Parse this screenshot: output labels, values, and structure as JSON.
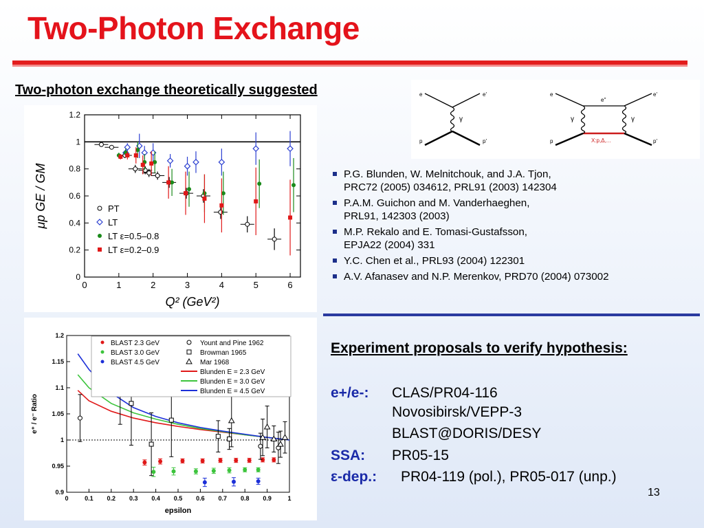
{
  "title": "Two-Photon Exchange",
  "subtitle": "Two-photon exchange theoretically suggested",
  "references": [
    {
      "line1": "P.G. Blunden, W. Melnitchouk, and J.A. Tjon,",
      "line2": "PRC72 (2005) 034612, PRL91 (2003) 142304"
    },
    {
      "line1": "P.A.M. Guichon and M. Vanderhaeghen,",
      "line2": "PRL91, 142303 (2003)"
    },
    {
      "line1": "M.P. Rekalo and E. Tomasi-Gustafsson,",
      "line2": "EPJA22 (2004) 331"
    },
    {
      "line1": "Y.C. Chen et al., PRL93 (2004) 122301",
      "line2": ""
    },
    {
      "line1": "A.V. Afanasev and N.P. Merenkov, PRD70 (2004) 073002",
      "line2": ""
    }
  ],
  "experiments": {
    "heading": "Experiment proposals to verify hypothesis:",
    "epem_label": "e+/e-:",
    "epem_items": [
      "CLAS/PR04-116",
      "Novosibirsk/VEPP-3",
      "BLAST@DORIS/DESY"
    ],
    "ssa_label": "SSA:",
    "ssa_value": "PR05-15",
    "eps_label": "ε-dep.:",
    "eps_value": "PR04-119 (pol.), PR05-017 (unp.)"
  },
  "page_number": "13",
  "feynman": {
    "left": {
      "e_in": "e",
      "e_out": "e'",
      "p_in": "p",
      "p_out": "p'",
      "boson": "γ"
    },
    "right": {
      "e_in": "e",
      "e_mid": "e''",
      "e_out": "e'",
      "p_in": "p",
      "p_out": "p'",
      "boson1": "γ",
      "boson2": "γ",
      "intermediate": "X:p,Δ,..."
    }
  },
  "colors": {
    "title": "#e4131b",
    "accent": "#1a2aa8",
    "rule_red": "#e31d1d",
    "rule_blue": "#2a3aa0"
  },
  "chart_data": [
    {
      "type": "scatter",
      "title": "",
      "xlabel": "Q² (GeV²)",
      "ylabel": "μp GE / GM",
      "xlim": [
        0,
        6.3
      ],
      "ylim": [
        0,
        1.2
      ],
      "xticks": [
        "0",
        "1",
        "2",
        "3",
        "4",
        "5",
        "6"
      ],
      "yticks": [
        "0",
        "0.2",
        "0.4",
        "0.6",
        "0.8",
        "1",
        "1.2"
      ],
      "reference_line": 1.0,
      "legend": [
        {
          "label": "PT",
          "marker": "open-circle",
          "color": "#000000"
        },
        {
          "label": "LT",
          "marker": "open-diamond",
          "color": "#2b3fd1"
        },
        {
          "label": "LT  ε=0.5–0.8",
          "marker": "filled-circle",
          "color": "#1a8a1a"
        },
        {
          "label": "LT  ε=0.2–0.9",
          "marker": "filled-square",
          "color": "#e01818"
        }
      ],
      "series": [
        {
          "name": "PT",
          "points": [
            {
              "x": 0.49,
              "y": 0.98,
              "err": 0.01
            },
            {
              "x": 0.79,
              "y": 0.96,
              "err": 0.01
            },
            {
              "x": 1.18,
              "y": 0.9,
              "err": 0.02
            },
            {
              "x": 1.48,
              "y": 0.8,
              "err": 0.03
            },
            {
              "x": 1.77,
              "y": 0.79,
              "err": 0.03
            },
            {
              "x": 1.88,
              "y": 0.77,
              "err": 0.03
            },
            {
              "x": 2.13,
              "y": 0.75,
              "err": 0.03
            },
            {
              "x": 2.47,
              "y": 0.7,
              "err": 0.04
            },
            {
              "x": 2.97,
              "y": 0.62,
              "err": 0.04
            },
            {
              "x": 3.47,
              "y": 0.6,
              "err": 0.05
            },
            {
              "x": 3.97,
              "y": 0.48,
              "err": 0.05
            },
            {
              "x": 4.75,
              "y": 0.39,
              "err": 0.06
            },
            {
              "x": 5.54,
              "y": 0.28,
              "err": 0.08
            }
          ]
        },
        {
          "name": "LT",
          "points": [
            {
              "x": 1.2,
              "y": 0.92,
              "err": 0.02
            },
            {
              "x": 1.25,
              "y": 0.96,
              "err": 0.03
            },
            {
              "x": 1.6,
              "y": 0.97,
              "err": 0.09
            },
            {
              "x": 1.75,
              "y": 0.92,
              "err": 0.05
            },
            {
              "x": 2.0,
              "y": 0.92,
              "err": 0.07
            },
            {
              "x": 2.5,
              "y": 0.86,
              "err": 0.05
            },
            {
              "x": 3.0,
              "y": 0.82,
              "err": 0.07
            },
            {
              "x": 3.25,
              "y": 0.85,
              "err": 0.08
            },
            {
              "x": 4.0,
              "y": 0.85,
              "err": 0.1
            },
            {
              "x": 5.0,
              "y": 0.95,
              "err": 0.12
            },
            {
              "x": 6.0,
              "y": 0.95,
              "err": 0.13
            }
          ]
        },
        {
          "name": "LT  ε=0.5–0.8",
          "points": [
            {
              "x": 1.0,
              "y": 0.9,
              "err": 0.02
            },
            {
              "x": 1.2,
              "y": 0.92,
              "err": 0.03
            },
            {
              "x": 1.55,
              "y": 0.94,
              "err": 0.06
            },
            {
              "x": 1.75,
              "y": 0.85,
              "err": 0.06
            },
            {
              "x": 2.05,
              "y": 0.85,
              "err": 0.08
            },
            {
              "x": 2.55,
              "y": 0.7,
              "err": 0.1
            },
            {
              "x": 3.05,
              "y": 0.65,
              "err": 0.13
            },
            {
              "x": 3.5,
              "y": 0.62,
              "err": 0.14
            },
            {
              "x": 4.05,
              "y": 0.62,
              "err": 0.16
            },
            {
              "x": 5.1,
              "y": 0.69,
              "err": 0.18
            },
            {
              "x": 6.1,
              "y": 0.68,
              "err": 0.2
            }
          ]
        },
        {
          "name": "LT  ε=0.2–0.9",
          "points": [
            {
              "x": 1.05,
              "y": 0.89,
              "err": 0.02
            },
            {
              "x": 1.25,
              "y": 0.9,
              "err": 0.03
            },
            {
              "x": 1.5,
              "y": 0.9,
              "err": 0.06
            },
            {
              "x": 1.7,
              "y": 0.83,
              "err": 0.07
            },
            {
              "x": 1.95,
              "y": 0.84,
              "err": 0.09
            },
            {
              "x": 2.45,
              "y": 0.7,
              "err": 0.12
            },
            {
              "x": 2.95,
              "y": 0.62,
              "err": 0.16
            },
            {
              "x": 3.5,
              "y": 0.58,
              "err": 0.18
            },
            {
              "x": 4.0,
              "y": 0.53,
              "err": 0.2
            },
            {
              "x": 5.0,
              "y": 0.56,
              "err": 0.25
            },
            {
              "x": 6.0,
              "y": 0.44,
              "err": 0.28
            }
          ]
        }
      ]
    },
    {
      "type": "scatter",
      "title": "",
      "xlabel": "epsilon",
      "ylabel": "e⁺ / e⁻ Ratio",
      "xlim": [
        0,
        1
      ],
      "ylim": [
        0.9,
        1.2
      ],
      "xticks": [
        "0",
        "0.1",
        "0.2",
        "0.3",
        "0.4",
        "0.5",
        "0.6",
        "0.7",
        "0.8",
        "0.9",
        "1"
      ],
      "yticks": [
        "0.9",
        "0.95",
        "1",
        "1.05",
        "1.1",
        "1.15",
        "1.2"
      ],
      "reference_line": 1.0,
      "legend_left": [
        {
          "label": "BLAST 2.3 GeV",
          "marker": "filled-circle",
          "color": "#e01818"
        },
        {
          "label": "BLAST 3.0 GeV",
          "marker": "filled-circle",
          "color": "#3cc43c"
        },
        {
          "label": "BLAST 4.5 GeV",
          "marker": "filled-circle",
          "color": "#1c2fd8"
        }
      ],
      "legend_right": [
        {
          "label": "Yount and Pine 1962",
          "marker": "open-circle",
          "color": "#000000"
        },
        {
          "label": "Browman 1965",
          "marker": "open-square",
          "color": "#000000"
        },
        {
          "label": "Mar 1968",
          "marker": "open-triangle",
          "color": "#000000"
        },
        {
          "label": "Blunden E = 2.3 GeV",
          "marker": "line",
          "color": "#e01818"
        },
        {
          "label": "Blunden E = 3.0 GeV",
          "marker": "line",
          "color": "#3cc43c"
        },
        {
          "label": "Blunden E = 4.5 GeV",
          "marker": "line",
          "color": "#1c2fd8"
        }
      ],
      "series": [
        {
          "name": "BLAST 2.3 GeV",
          "points": [
            {
              "x": 0.35,
              "y": 0.957,
              "err": 0.005
            },
            {
              "x": 0.42,
              "y": 0.959,
              "err": 0.005
            },
            {
              "x": 0.52,
              "y": 0.96,
              "err": 0.004
            },
            {
              "x": 0.61,
              "y": 0.96,
              "err": 0.004
            },
            {
              "x": 0.69,
              "y": 0.961,
              "err": 0.004
            },
            {
              "x": 0.76,
              "y": 0.961,
              "err": 0.004
            },
            {
              "x": 0.82,
              "y": 0.961,
              "err": 0.004
            },
            {
              "x": 0.88,
              "y": 0.962,
              "err": 0.004
            },
            {
              "x": 0.93,
              "y": 0.962,
              "err": 0.004
            }
          ]
        },
        {
          "name": "BLAST 3.0 GeV",
          "points": [
            {
              "x": 0.39,
              "y": 0.939,
              "err": 0.009
            },
            {
              "x": 0.48,
              "y": 0.94,
              "err": 0.007
            },
            {
              "x": 0.58,
              "y": 0.94,
              "err": 0.005
            },
            {
              "x": 0.66,
              "y": 0.941,
              "err": 0.005
            },
            {
              "x": 0.73,
              "y": 0.942,
              "err": 0.005
            },
            {
              "x": 0.8,
              "y": 0.943,
              "err": 0.004
            },
            {
              "x": 0.86,
              "y": 0.943,
              "err": 0.004
            }
          ]
        },
        {
          "name": "BLAST 4.5 GeV",
          "points": [
            {
              "x": 0.62,
              "y": 0.919,
              "err": 0.008
            },
            {
              "x": 0.75,
              "y": 0.92,
              "err": 0.008
            },
            {
              "x": 0.86,
              "y": 0.921,
              "err": 0.006
            }
          ]
        },
        {
          "name": "Yount and Pine 1962",
          "points": [
            {
              "x": 0.06,
              "y": 1.042,
              "err": 0.045
            },
            {
              "x": 0.87,
              "y": 0.988,
              "err": 0.025
            },
            {
              "x": 0.95,
              "y": 0.985,
              "err": 0.03
            }
          ]
        },
        {
          "name": "Browman 1965",
          "points": [
            {
              "x": 0.24,
              "y": 1.09,
              "err": 0.06
            },
            {
              "x": 0.29,
              "y": 1.07,
              "err": 0.08
            },
            {
              "x": 0.38,
              "y": 0.992,
              "err": 0.06
            },
            {
              "x": 0.47,
              "y": 1.038,
              "err": 0.07
            },
            {
              "x": 0.68,
              "y": 1.007,
              "err": 0.03
            },
            {
              "x": 0.73,
              "y": 1.002,
              "err": 0.02
            }
          ]
        },
        {
          "name": "Mar 1968",
          "points": [
            {
              "x": 0.74,
              "y": 1.037,
              "err": 0.05
            },
            {
              "x": 0.88,
              "y": 1.005,
              "err": 0.035
            },
            {
              "x": 0.9,
              "y": 1.025,
              "err": 0.04
            },
            {
              "x": 0.93,
              "y": 1.002,
              "err": 0.025
            },
            {
              "x": 0.96,
              "y": 0.992,
              "err": 0.025
            },
            {
              "x": 0.98,
              "y": 1.005,
              "err": 0.03
            }
          ]
        }
      ],
      "curves": [
        {
          "name": "Blunden E = 2.3 GeV",
          "x": [
            0.05,
            0.1,
            0.2,
            0.3,
            0.4,
            0.5,
            0.6,
            0.7,
            0.8,
            0.9,
            1.0
          ],
          "y": [
            1.095,
            1.075,
            1.055,
            1.042,
            1.033,
            1.026,
            1.02,
            1.015,
            1.01,
            1.005,
            1.0
          ]
        },
        {
          "name": "Blunden E = 3.0 GeV",
          "x": [
            0.05,
            0.1,
            0.2,
            0.3,
            0.4,
            0.5,
            0.6,
            0.7,
            0.8,
            0.9,
            1.0
          ],
          "y": [
            1.125,
            1.1,
            1.07,
            1.052,
            1.04,
            1.03,
            1.022,
            1.016,
            1.01,
            1.005,
            1.0
          ]
        },
        {
          "name": "Blunden E = 4.5 GeV",
          "x": [
            0.05,
            0.1,
            0.2,
            0.3,
            0.4,
            0.5,
            0.6,
            0.7,
            0.8,
            0.9,
            1.0
          ],
          "y": [
            1.165,
            1.135,
            1.09,
            1.062,
            1.045,
            1.033,
            1.024,
            1.017,
            1.011,
            1.005,
            1.0
          ]
        }
      ]
    }
  ]
}
